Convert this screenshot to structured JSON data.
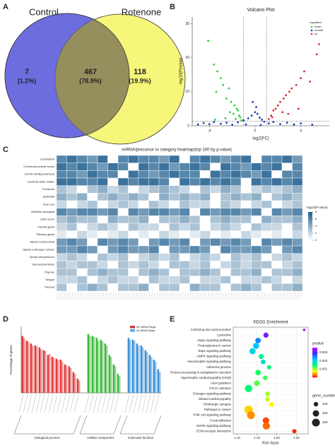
{
  "chart_data": [
    {
      "type": "venn",
      "panel": "A",
      "sets": [
        {
          "name": "Control",
          "color": "#6d6de0"
        },
        {
          "name": "Rotenone",
          "color": "#f6f67a"
        }
      ],
      "overlap_color": "#958f5e",
      "values": [
        7,
        467,
        118
      ],
      "shares": [
        1.2,
        78.9,
        19.9
      ],
      "share_labels": [
        "(1.2%)",
        "(78.9%)",
        "(19.9%)"
      ]
    },
    {
      "type": "scatter",
      "panel": "B",
      "title": "Volcano Plot",
      "xlabel": "log2(FC)",
      "ylabel": "-log10(Pvalue)",
      "xlim": [
        -5.5,
        6.5
      ],
      "ylim": [
        0,
        32
      ],
      "xticks": [
        -4,
        0,
        4
      ],
      "yticks": [
        0,
        10,
        20,
        30
      ],
      "vlines": [
        -1,
        1
      ],
      "hline": 1.3,
      "legend_title": "regulated",
      "legend": "upper right",
      "series": [
        {
          "name": "down",
          "color": "#2ecc40",
          "x": [
            -4.1,
            -3.6,
            -3.3,
            -3,
            -2.8,
            -2.3,
            -3.4,
            -2.5,
            -2.1,
            -1.8,
            -1.6,
            -1.5,
            -2.2,
            -1.9,
            -1.4,
            -1.3,
            -2.6,
            -1.7,
            -3.5,
            -1.2
          ],
          "values": [
            25,
            18,
            16,
            14,
            12,
            11,
            10,
            8,
            7,
            6,
            5,
            4.5,
            4,
            3.5,
            3,
            2.5,
            2.2,
            2,
            1.8,
            1.6
          ]
        },
        {
          "name": "normal",
          "color": "#1f3fbf",
          "x": [
            -5,
            -4.5,
            -4,
            -3.6,
            -3,
            -2.5,
            -2,
            -1.5,
            -1,
            -0.6,
            -0.3,
            0,
            0.2,
            0.4,
            0.6,
            0.8,
            1.2,
            1.6,
            2.2,
            2.8,
            3.4,
            4,
            5,
            -0.8,
            0.5,
            -0.2,
            0.1
          ],
          "values": [
            0.4,
            0.8,
            0.5,
            1.1,
            0.6,
            0.9,
            0.3,
            1,
            1.6,
            2.2,
            3,
            4,
            3.5,
            2.4,
            1.8,
            1.2,
            0.7,
            1.1,
            0.5,
            0.9,
            0.4,
            0.7,
            0.3,
            0.4,
            0.2,
            7,
            5.5
          ]
        },
        {
          "name": "up",
          "color": "#e0282e",
          "x": [
            1.2,
            1.4,
            1.6,
            1.8,
            2,
            2.2,
            2.5,
            2.7,
            3,
            3.2,
            2.4,
            3.6,
            4,
            4.3,
            4.8,
            5.4,
            5.6,
            1.5,
            2.9,
            3.8
          ],
          "values": [
            2,
            3,
            4.5,
            5,
            6,
            7,
            8,
            9,
            10,
            11,
            4,
            12,
            14,
            16,
            13,
            21,
            24,
            2.5,
            3.5,
            5
          ]
        }
      ]
    },
    {
      "type": "heatmap",
      "panel": "C",
      "title": "miRNA/precursor to category heatmap(top 100 by p-value)",
      "rows": [
        "Cerebellum",
        "Cerebrum/cortical cortex",
        "Cerebrum/hippocampus",
        "Cerebral white matter",
        "Forebrain",
        "Epithelial",
        "Inner ear",
        "Medulla oblongata",
        "Optic nerve",
        "Parotid gland",
        "Pituitary gland",
        "Spinal cord/cervical",
        "Spinal cord/upper lumbar",
        "Spinal vein/pericord",
        "Stomach/ventricle",
        "Thymus",
        "Tongue",
        "Trachea"
      ],
      "values": [
        [
          6,
          7,
          6,
          5,
          7,
          0,
          6,
          7,
          6,
          6,
          5,
          7,
          0,
          6,
          7,
          6,
          5,
          6,
          7,
          0,
          6,
          6,
          7,
          5
        ],
        [
          7,
          6,
          7,
          6,
          5,
          7,
          6,
          0,
          7,
          6,
          7,
          5,
          6,
          7,
          6,
          0,
          7,
          6,
          5,
          7,
          6,
          7,
          0,
          6
        ],
        [
          6,
          6,
          5,
          7,
          6,
          6,
          0,
          7,
          6,
          5,
          6,
          7,
          6,
          6,
          0,
          7,
          6,
          7,
          6,
          5,
          7,
          0,
          6,
          6
        ],
        [
          7,
          7,
          6,
          6,
          7,
          0,
          7,
          6,
          7,
          7,
          6,
          0,
          7,
          6,
          7,
          6,
          7,
          6,
          0,
          7,
          6,
          7,
          6,
          7
        ],
        [
          3,
          2,
          0,
          3,
          4,
          2,
          3,
          0,
          2,
          3,
          4,
          3,
          2,
          0,
          3,
          2,
          4,
          3,
          0,
          2,
          3,
          2,
          3,
          4
        ],
        [
          4,
          3,
          4,
          0,
          3,
          4,
          3,
          4,
          3,
          0,
          4,
          3,
          4,
          3,
          4,
          0,
          3,
          4,
          3,
          4,
          0,
          3,
          4,
          3
        ],
        [
          2,
          0,
          2,
          3,
          0,
          2,
          3,
          2,
          0,
          3,
          2,
          0,
          3,
          2,
          2,
          0,
          3,
          2,
          0,
          2,
          3,
          0,
          2,
          3
        ],
        [
          6,
          5,
          6,
          6,
          5,
          6,
          0,
          6,
          5,
          6,
          6,
          5,
          6,
          0,
          6,
          5,
          6,
          6,
          5,
          6,
          0,
          6,
          5,
          6
        ],
        [
          3,
          4,
          3,
          3,
          0,
          4,
          3,
          3,
          4,
          0,
          3,
          3,
          4,
          3,
          0,
          3,
          4,
          3,
          3,
          0,
          4,
          3,
          3,
          4
        ],
        [
          2,
          3,
          0,
          2,
          3,
          2,
          0,
          3,
          2,
          2,
          0,
          3,
          2,
          3,
          0,
          2,
          3,
          2,
          0,
          3,
          2,
          2,
          0,
          3
        ],
        [
          1,
          0,
          2,
          1,
          0,
          1,
          2,
          0,
          1,
          0,
          2,
          1,
          0,
          1,
          2,
          0,
          1,
          0,
          2,
          1,
          0,
          1,
          0,
          2
        ],
        [
          5,
          6,
          5,
          0,
          6,
          5,
          6,
          5,
          0,
          5,
          6,
          5,
          6,
          0,
          5,
          6,
          5,
          6,
          5,
          0,
          6,
          5,
          6,
          5
        ],
        [
          5,
          5,
          6,
          5,
          0,
          5,
          6,
          5,
          5,
          6,
          0,
          5,
          5,
          6,
          5,
          0,
          6,
          5,
          5,
          6,
          5,
          0,
          5,
          6
        ],
        [
          2,
          3,
          2,
          0,
          3,
          2,
          3,
          0,
          2,
          3,
          2,
          3,
          0,
          2,
          3,
          2,
          0,
          3,
          2,
          3,
          0,
          2,
          3,
          2
        ],
        [
          3,
          2,
          3,
          3,
          2,
          0,
          3,
          2,
          3,
          2,
          0,
          3,
          3,
          2,
          3,
          0,
          2,
          3,
          2,
          3,
          3,
          0,
          2,
          3
        ],
        [
          3,
          3,
          0,
          3,
          4,
          3,
          3,
          0,
          3,
          4,
          3,
          0,
          3,
          3,
          4,
          3,
          0,
          3,
          3,
          4,
          0,
          3,
          3,
          4
        ],
        [
          2,
          2,
          3,
          0,
          2,
          3,
          2,
          2,
          0,
          3,
          2,
          2,
          3,
          0,
          2,
          2,
          3,
          0,
          2,
          2,
          3,
          2,
          0,
          2
        ],
        [
          3,
          0,
          3,
          4,
          3,
          0,
          3,
          3,
          4,
          0,
          3,
          3,
          0,
          4,
          3,
          3,
          0,
          3,
          4,
          3,
          0,
          3,
          3,
          4
        ]
      ],
      "colorbar_label": "-log10(P-value)",
      "clim": [
        0,
        8
      ],
      "cticks": [
        0,
        2,
        4,
        6,
        8
      ],
      "colors": [
        "#ffffff",
        "#1f5f8f"
      ]
    },
    {
      "type": "grouped_bar",
      "panel": "D",
      "ylabel": "Percentage of genes",
      "ylim": [
        0,
        70
      ],
      "groups": [
        {
          "name": "biological process",
          "color": "#e03c3c"
        },
        {
          "name": "cellular component",
          "color": "#3cb83c"
        },
        {
          "name": "molecular function",
          "color": "#3a8fd6"
        }
      ],
      "category_groups": [
        "biological process",
        "biological process",
        "biological process",
        "biological process",
        "biological process",
        "biological process",
        "biological process",
        "biological process",
        "biological process",
        "biological process",
        "biological process",
        "biological process",
        "biological process",
        "biological process",
        "cellular component",
        "cellular component",
        "cellular component",
        "cellular component",
        "cellular component",
        "cellular component",
        "cellular component",
        "cellular component",
        "molecular function",
        "molecular function",
        "molecular function",
        "molecular function",
        "molecular function",
        "molecular function",
        "molecular function",
        "molecular function"
      ],
      "series": [
        {
          "name": "DE miRNA Target",
          "color": "#d03a3a",
          "opacity": 1,
          "values": [
            60,
            55,
            52,
            50,
            48,
            45,
            40,
            38,
            36,
            35,
            30,
            28,
            22,
            15,
            62,
            60,
            58,
            56,
            52,
            40,
            30,
            20,
            58,
            56,
            52,
            50,
            45,
            40,
            35,
            25
          ]
        },
        {
          "name": "All miRNA Target",
          "color": "#5aa9d8",
          "opacity": 0.55,
          "values": [
            58,
            54,
            50,
            49,
            46,
            44,
            41,
            37,
            35,
            33,
            29,
            26,
            20,
            13,
            60,
            59,
            55,
            54,
            50,
            38,
            28,
            18,
            56,
            55,
            50,
            48,
            43,
            38,
            33,
            22
          ]
        }
      ]
    },
    {
      "type": "bubble",
      "panel": "E",
      "title": "KEGG Enrichment",
      "xlabel": "Rich factor",
      "categories": [
        "Collecting duct acid secretion",
        "Lysosome",
        "Hippo signaling pathway",
        "Proteoglycans in cancer",
        "Rap1 signaling pathway",
        "AMPK signaling pathway",
        "Neurotrophin signaling pathway",
        "Adherens junction",
        "Protein processing in endoplasmic reticulum",
        "Hypertrophic cardiomyopathy (HCM)",
        "Axon guidance",
        "HTLV-I infection",
        "Estrogen signaling pathway",
        "Dilated cardiomyopathy",
        "Cholinergic synapse",
        "Pathways in cancer",
        "PI3K-Akt signaling pathway",
        "Focal adhesion",
        "MAPK signaling pathway",
        "ECM-receptor interaction"
      ],
      "x": [
        1.27,
        1.173,
        1.153,
        1.148,
        1.139,
        1.161,
        1.166,
        1.181,
        1.153,
        1.171,
        1.15,
        1.129,
        1.177,
        1.177,
        1.187,
        1.129,
        1.135,
        1.173,
        1.174,
        1.245
      ],
      "pvalue": [
        0.0035,
        0.0032,
        0.0025,
        0.0022,
        0.002,
        0.0016,
        0.0019,
        0.0015,
        0.0014,
        0.0013,
        0.0012,
        0.0015,
        0.001,
        0.0009,
        0.0007,
        0.0006,
        0.0004,
        0.0002,
        0.0003,
        0.0001
      ],
      "gene_number": [
        30,
        130,
        150,
        180,
        190,
        120,
        110,
        90,
        150,
        100,
        160,
        270,
        110,
        105,
        120,
        350,
        300,
        200,
        260,
        90
      ],
      "xlim": [
        1.09,
        1.28
      ],
      "xticks": [
        {
          "value": 1.1,
          "label": "1.10"
        },
        {
          "value": 1.15,
          "label": "1.15"
        },
        {
          "value": 1.2,
          "label": "1.20"
        },
        {
          "value": 1.25,
          "label": "1.25"
        }
      ],
      "color_legend_title": "pvalue",
      "clim": [
        0,
        0.0036
      ],
      "cticks": [
        0.001,
        0.002,
        0.003
      ],
      "colorscale": [
        "#ff0000",
        "#ffff00",
        "#00ff66",
        "#00ccff",
        "#3333ff",
        "#cc00ff"
      ],
      "size_legend_title": "gene_number",
      "size_ticks": [
        100,
        200,
        300
      ]
    }
  ]
}
